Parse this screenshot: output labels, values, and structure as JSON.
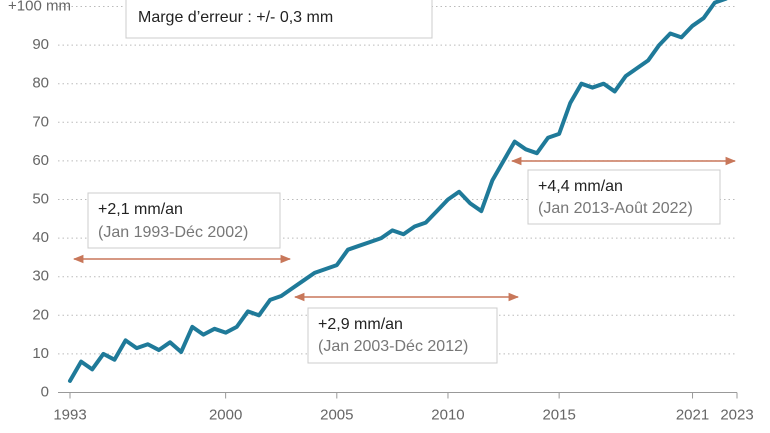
{
  "chart_data": {
    "type": "line",
    "x": [
      1993,
      1993.5,
      1994,
      1994.5,
      1995,
      1995.5,
      1996,
      1996.5,
      1997,
      1997.5,
      1998,
      1998.5,
      1999,
      1999.5,
      2000,
      2000.5,
      2001,
      2001.5,
      2002,
      2002.5,
      2003,
      2003.5,
      2004,
      2004.5,
      2005,
      2005.5,
      2006,
      2006.5,
      2007,
      2007.5,
      2008,
      2008.5,
      2009,
      2009.5,
      2010,
      2010.5,
      2011,
      2011.5,
      2012,
      2012.5,
      2013,
      2013.5,
      2014,
      2014.5,
      2015,
      2015.5,
      2016,
      2016.5,
      2017,
      2017.5,
      2018,
      2018.5,
      2019,
      2019.5,
      2020,
      2020.5,
      2021,
      2021.5,
      2022,
      2022.5
    ],
    "series": [
      {
        "color": "#1f7a99",
        "values": [
          3,
          8,
          6,
          10,
          8.5,
          13.5,
          11.5,
          12.5,
          11,
          13,
          10.5,
          17,
          15,
          16.5,
          15.5,
          17,
          21,
          20,
          24,
          25,
          27,
          29,
          31,
          32,
          33,
          37,
          38,
          39,
          40,
          42,
          41,
          43,
          44,
          47,
          50,
          52,
          49,
          47,
          55,
          60,
          65,
          63,
          62,
          66,
          67,
          75,
          80,
          79,
          80,
          78,
          82,
          84,
          86,
          90,
          93,
          92,
          95,
          97,
          101,
          102
        ]
      }
    ],
    "xlim": [
      1993,
      2023
    ],
    "xticks": [
      1993,
      2000,
      2005,
      2010,
      2015,
      2021,
      2023
    ],
    "ylim": [
      0,
      100
    ],
    "yticks": [
      0,
      10,
      20,
      30,
      40,
      50,
      60,
      70,
      80,
      90,
      {
        "value": 100,
        "label": "+100 mm"
      }
    ],
    "grid": true,
    "note": "Marge d’erreur : +/- 0,3 mm",
    "annotations": [
      {
        "rate": "+2,1 mm/an",
        "period": "(Jan 1993-Déc 2002)"
      },
      {
        "rate": "+2,9 mm/an",
        "period": "(Jan 2003-Déc 2012)"
      },
      {
        "rate": "+4,4 mm/an",
        "period": "(Jan 2013-Août 2022)"
      }
    ]
  }
}
